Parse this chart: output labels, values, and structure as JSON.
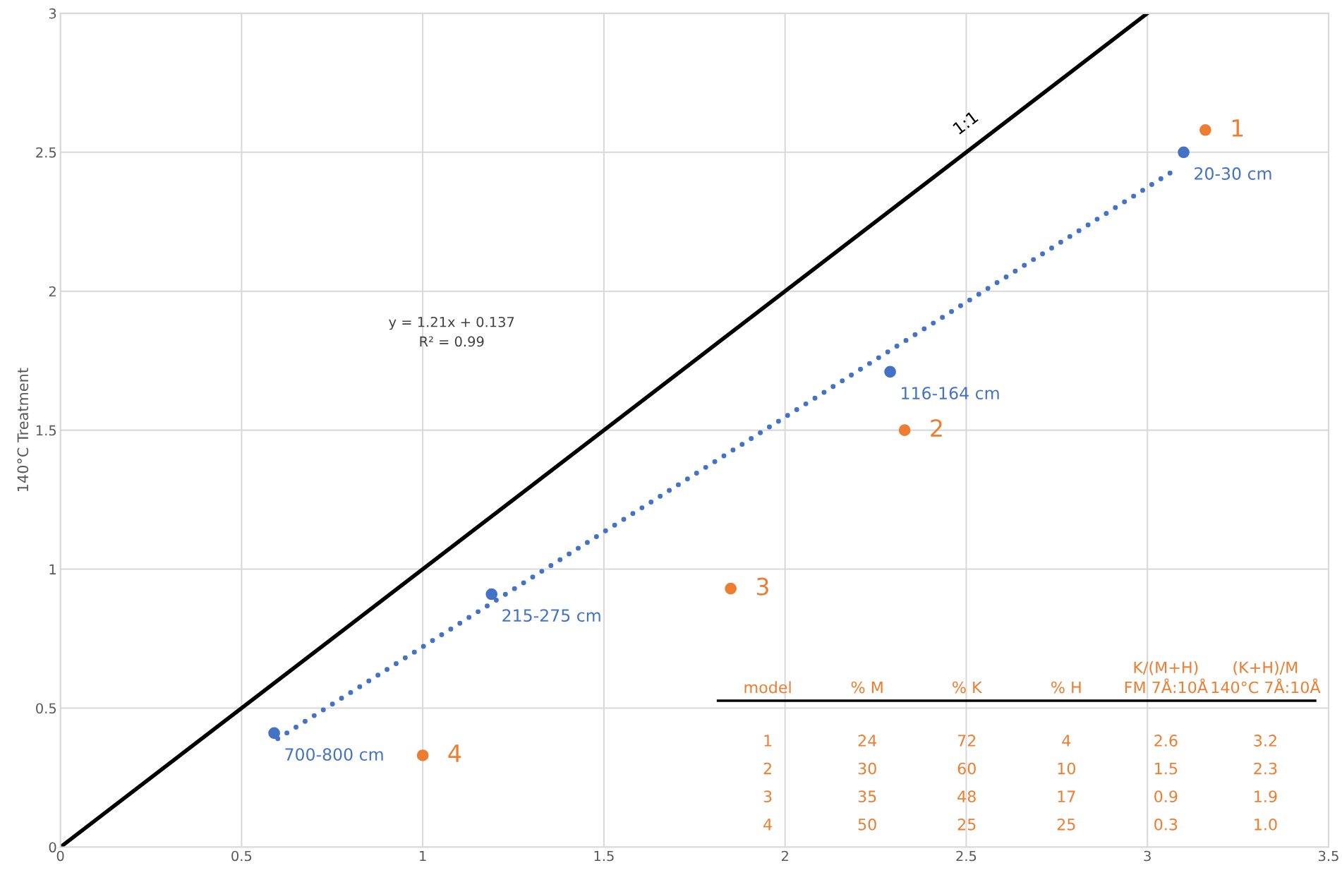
{
  "chart_data": {
    "type": "scatter",
    "ylabel": "140°C Treatment",
    "xlim": [
      0,
      3.5
    ],
    "xticks": [
      0,
      0.5,
      1,
      1.5,
      2,
      2.5,
      3,
      3.5
    ],
    "ylim": [
      0,
      3
    ],
    "yticks": [
      0,
      0.5,
      1,
      1.5,
      2,
      2.5,
      3
    ],
    "grid": true,
    "marker": "circle",
    "series": [
      {
        "type": "line",
        "color": "#000000",
        "x": [
          0,
          3
        ],
        "values": [
          0,
          3
        ],
        "line_style": "solid",
        "marker": "none"
      },
      {
        "type": "line",
        "color": "#4472c4",
        "x": [
          0.6,
          3.08
        ],
        "values": [
          0.39,
          2.44
        ],
        "line_style": "dotted",
        "marker": "none"
      },
      {
        "color": "#4472c4",
        "x": [
          0.59,
          1.19,
          2.29,
          3.1
        ],
        "values": [
          0.41,
          0.91,
          1.71,
          2.5
        ]
      },
      {
        "color": "#ed7d31",
        "x": [
          3.16,
          2.33,
          1.85,
          1.0
        ],
        "values": [
          2.58,
          1.5,
          0.93,
          0.33
        ]
      }
    ],
    "annotations": [
      {
        "text": "700-800 cm",
        "x": 0.59,
        "y": 0.41
      },
      {
        "text": "215-275 cm",
        "x": 1.19,
        "y": 0.91
      },
      {
        "text": "116-164 cm",
        "x": 2.29,
        "y": 1.71
      },
      {
        "text": "20-30 cm",
        "x": 3.1,
        "y": 2.5
      },
      {
        "text": "1",
        "x": 3.16,
        "y": 2.58
      },
      {
        "text": "2",
        "x": 2.33,
        "y": 1.5
      },
      {
        "text": "3",
        "x": 1.85,
        "y": 0.93
      },
      {
        "text": "4",
        "x": 1.0,
        "y": 0.33
      },
      "1:1",
      "y = 1.21x + 0.137\nR² = 0.99",
      "model",
      "% M",
      "% K",
      "% H",
      "K/(M+H)\nFM 7Å:10Å",
      "(K+H)/M\n140°C 7Å:10Å",
      "1",
      "24",
      "72",
      "4",
      "2.6",
      "3.2",
      "2",
      "30",
      "60",
      "10",
      "1.5",
      "2.3",
      "3",
      "35",
      "48",
      "17",
      "0.9",
      "1.9",
      "4",
      "50",
      "25",
      "25",
      "0.3",
      "1.0"
    ]
  }
}
